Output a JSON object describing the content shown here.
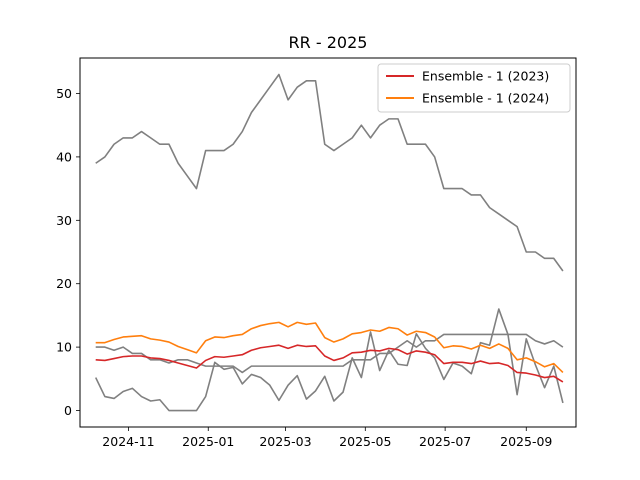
{
  "chart_data": {
    "type": "line",
    "title": "RR - 2025",
    "xlabel": "",
    "ylabel": "",
    "x_start": "2024-10-07",
    "x_step_days": 7,
    "xlim": [
      "2024-09-25",
      "2025-10-09"
    ],
    "ylim": [
      -2.6,
      55.6
    ],
    "x_ticks": [
      {
        "date": "2024-11-01",
        "label": "2024-11"
      },
      {
        "date": "2025-01-01",
        "label": "2025-01"
      },
      {
        "date": "2025-03-01",
        "label": "2025-03"
      },
      {
        "date": "2025-05-01",
        "label": "2025-05"
      },
      {
        "date": "2025-07-01",
        "label": "2025-07"
      },
      {
        "date": "2025-09-01",
        "label": "2025-09"
      }
    ],
    "y_ticks": [
      0,
      10,
      20,
      30,
      40,
      50
    ],
    "grid": false,
    "legend_position": "upper-right",
    "series": [
      {
        "name": "",
        "color": "#808080",
        "values": [
          39,
          40,
          42,
          43,
          43,
          44,
          43,
          42,
          42,
          39,
          37,
          35,
          41,
          41,
          41,
          42,
          44,
          47,
          49,
          51,
          53,
          49,
          51,
          52,
          52,
          42,
          41,
          42,
          43,
          45,
          43,
          45,
          46,
          46,
          42,
          42,
          42,
          40,
          35,
          35,
          35,
          34,
          34,
          32,
          31,
          30,
          29,
          25,
          25,
          24,
          24,
          22
        ]
      },
      {
        "name": "",
        "color": "#808080",
        "values": [
          10,
          10,
          9.5,
          10,
          9,
          9,
          8,
          8,
          7.5,
          8,
          8,
          7.5,
          7,
          7,
          7,
          7,
          6,
          7,
          7,
          7,
          7,
          7,
          7,
          7,
          7,
          7,
          7,
          7,
          8,
          8,
          8,
          9,
          9,
          10,
          11,
          10,
          11,
          11,
          12,
          12,
          12,
          12,
          12,
          12,
          12,
          12,
          12,
          12,
          11,
          10.5,
          11,
          10
        ]
      },
      {
        "name": "",
        "color": "#808080",
        "values": [
          5.2,
          2.2,
          1.9,
          3,
          3.5,
          2.2,
          1.5,
          1.7,
          0,
          0,
          0,
          0,
          2.2,
          7.6,
          6.5,
          6.8,
          4.2,
          5.7,
          5.2,
          4,
          1.6,
          4,
          5.5,
          1.8,
          3.1,
          5.4,
          1.5,
          2.9,
          8.3,
          5.2,
          12.4,
          6.3,
          9.5,
          7.3,
          7.1,
          12.1,
          9.8,
          8.3,
          4.9,
          7.5,
          7,
          5.8,
          10.7,
          10.3,
          16,
          12,
          2.5,
          11.3,
          7.2,
          3.6,
          7,
          1.2
        ]
      },
      {
        "name": "Ensemble - 1 (2023)",
        "color": "#d62728",
        "values": [
          8,
          7.9,
          8.2,
          8.5,
          8.6,
          8.6,
          8.3,
          8.2,
          7.9,
          7.5,
          7.1,
          6.7,
          7.9,
          8.5,
          8.4,
          8.6,
          8.8,
          9.5,
          9.9,
          10.1,
          10.3,
          9.8,
          10.3,
          10.1,
          10.2,
          8.6,
          7.9,
          8.3,
          9.1,
          9.2,
          9.5,
          9.4,
          9.8,
          9.6,
          8.9,
          9.4,
          9.2,
          8.8,
          7.4,
          7.6,
          7.6,
          7.4,
          7.8,
          7.4,
          7.5,
          7.1,
          6,
          5.9,
          5.6,
          5.2,
          5.4,
          4.5
        ]
      },
      {
        "name": "Ensemble - 1 (2024)",
        "color": "#ff7f0e",
        "values": [
          10.7,
          10.7,
          11.2,
          11.6,
          11.7,
          11.8,
          11.3,
          11.1,
          10.8,
          10.1,
          9.6,
          9.1,
          11,
          11.6,
          11.5,
          11.8,
          12,
          12.9,
          13.4,
          13.7,
          13.9,
          13.2,
          13.9,
          13.6,
          13.8,
          11.5,
          10.8,
          11.3,
          12.1,
          12.3,
          12.7,
          12.5,
          13.1,
          12.9,
          11.9,
          12.5,
          12.3,
          11.6,
          9.9,
          10.2,
          10.1,
          9.7,
          10.3,
          9.8,
          10.5,
          9.8,
          8,
          8.3,
          7.7,
          6.9,
          7.4,
          6
        ]
      }
    ]
  }
}
